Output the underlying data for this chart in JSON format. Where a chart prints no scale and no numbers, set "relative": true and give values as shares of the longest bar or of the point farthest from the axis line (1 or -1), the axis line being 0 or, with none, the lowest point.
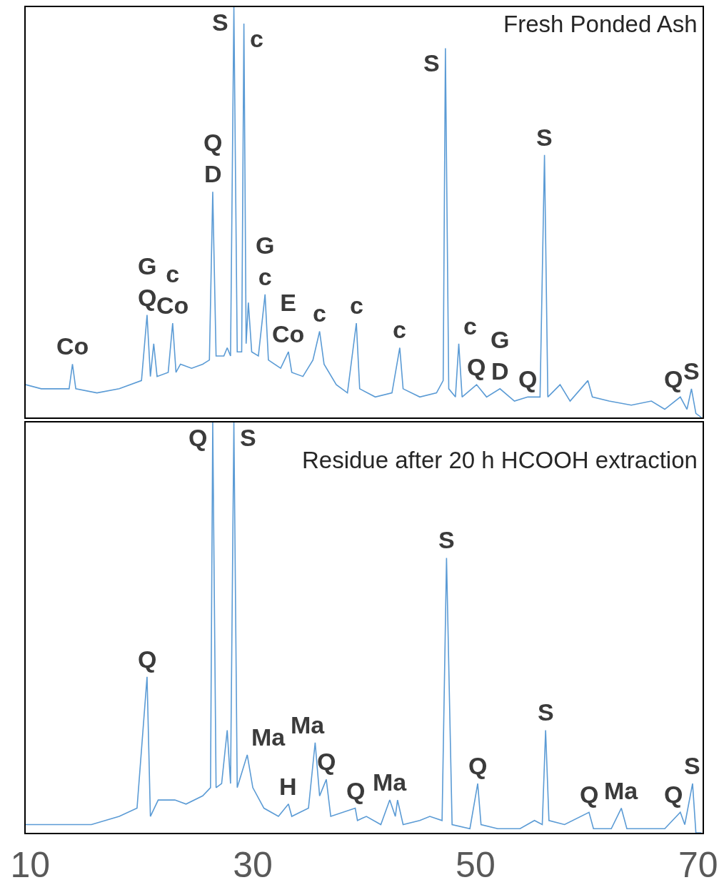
{
  "chart_data": [
    {
      "type": "line",
      "title": "Fresh Ponded Ash",
      "relative": true,
      "xlim": [
        9.6,
        70.4
      ],
      "xticks": [
        10,
        30,
        50,
        70
      ],
      "tick_labels": false,
      "x": [
        9.6,
        11,
        12.5,
        13.5,
        13.8,
        14.1,
        16,
        18,
        20,
        20.5,
        20.8,
        21.1,
        21.4,
        22.4,
        22.8,
        23.1,
        23.5,
        24.5,
        25.5,
        26.1,
        26.4,
        26.7,
        27.4,
        27.7,
        28.0,
        28.3,
        28.6,
        29.0,
        29.2,
        29.4,
        29.6,
        29.9,
        30.5,
        31.1,
        31.4,
        32.5,
        33.2,
        33.5,
        34.5,
        35.4,
        36.0,
        36.4,
        37.5,
        38.5,
        39.3,
        39.6,
        41,
        42.5,
        43.2,
        43.5,
        45,
        46.5,
        47.1,
        47.3,
        47.6,
        48.2,
        48.5,
        48.8,
        50.1,
        51,
        52.2,
        53.5,
        54.7,
        55.8,
        56.2,
        56.5,
        57.6,
        58.5,
        60.1,
        60.5,
        62,
        64,
        65.8,
        67,
        68.4,
        69,
        69.4,
        69.8,
        70.3
      ],
      "series": [
        {
          "color": "#5b9bd5",
          "values": [
            0.08,
            0.07,
            0.07,
            0.07,
            0.13,
            0.07,
            0.06,
            0.07,
            0.09,
            0.25,
            0.1,
            0.18,
            0.1,
            0.11,
            0.23,
            0.11,
            0.13,
            0.12,
            0.13,
            0.14,
            0.55,
            0.15,
            0.15,
            0.17,
            0.15,
            1.0,
            0.16,
            0.16,
            0.96,
            0.18,
            0.28,
            0.16,
            0.15,
            0.3,
            0.14,
            0.12,
            0.16,
            0.11,
            0.1,
            0.14,
            0.21,
            0.13,
            0.08,
            0.06,
            0.23,
            0.07,
            0.05,
            0.06,
            0.17,
            0.07,
            0.05,
            0.06,
            0.09,
            0.9,
            0.07,
            0.05,
            0.18,
            0.05,
            0.08,
            0.05,
            0.07,
            0.04,
            0.05,
            0.05,
            0.64,
            0.05,
            0.08,
            0.04,
            0.09,
            0.05,
            0.04,
            0.03,
            0.04,
            0.02,
            0.05,
            0.02,
            0.07,
            0.01,
            0.0
          ]
        }
      ],
      "annotations": [
        {
          "text": "Co",
          "x": 13.8,
          "y": 0.13
        },
        {
          "text": "G\nQ",
          "x": 20.5,
          "y": 0.25
        },
        {
          "text": "c\nCo",
          "x": 22.8,
          "y": 0.23
        },
        {
          "text": "Q\nD",
          "x": 26.4,
          "y": 0.55
        },
        {
          "text": "S",
          "x": 28.3,
          "y": 1.0
        },
        {
          "text": "c",
          "x": 29.2,
          "y": 0.96
        },
        {
          "text": "G\nc",
          "x": 31.1,
          "y": 0.3
        },
        {
          "text": "E\nCo",
          "x": 33.2,
          "y": 0.16
        },
        {
          "text": "c",
          "x": 36.0,
          "y": 0.21
        },
        {
          "text": "c",
          "x": 39.3,
          "y": 0.23
        },
        {
          "text": "c",
          "x": 43.2,
          "y": 0.17
        },
        {
          "text": "S",
          "x": 47.3,
          "y": 0.9
        },
        {
          "text": "c",
          "x": 48.5,
          "y": 0.18
        },
        {
          "text": "Q",
          "x": 50.1,
          "y": 0.08
        },
        {
          "text": "G\nD",
          "x": 52.2,
          "y": 0.07
        },
        {
          "text": "Q",
          "x": 54.7,
          "y": 0.05
        },
        {
          "text": "S",
          "x": 56.2,
          "y": 0.64
        },
        {
          "text": "Q",
          "x": 68.4,
          "y": 0.05
        },
        {
          "text": "S",
          "x": 69.4,
          "y": 0.07
        }
      ]
    },
    {
      "type": "line",
      "title": "Residue after 20 h HCOOH extraction",
      "relative": true,
      "xlim": [
        9.6,
        70.4
      ],
      "xticks": [
        10,
        30,
        50,
        70
      ],
      "tick_labels": "x",
      "x": [
        9.6,
        15.5,
        18,
        19.6,
        20.5,
        20.8,
        21.5,
        23.0,
        24.0,
        25.5,
        26.2,
        26.4,
        26.7,
        27.2,
        27.7,
        28.0,
        28.3,
        28.6,
        29.5,
        30.0,
        31,
        32.3,
        33.2,
        33.5,
        35.0,
        35.6,
        36.0,
        36.6,
        37,
        39.2,
        39.4,
        40.2,
        41.5,
        42.3,
        42.8,
        43.0,
        43.5,
        45,
        45.9,
        47.0,
        47.4,
        47.9,
        49.5,
        50.2,
        50.5,
        52,
        54,
        55.3,
        56,
        56.3,
        56.6,
        58,
        60.2,
        60.6,
        62.2,
        63.1,
        63.6,
        65,
        67,
        68.4,
        68.8,
        69.5,
        69.8,
        70.3
      ],
      "series": [
        {
          "color": "#5b9bd5",
          "values": [
            0.02,
            0.02,
            0.04,
            0.06,
            0.38,
            0.04,
            0.08,
            0.08,
            0.07,
            0.09,
            0.11,
            1.0,
            0.11,
            0.12,
            0.25,
            0.12,
            1.0,
            0.11,
            0.19,
            0.11,
            0.06,
            0.04,
            0.07,
            0.04,
            0.06,
            0.22,
            0.09,
            0.13,
            0.04,
            0.06,
            0.03,
            0.04,
            0.02,
            0.08,
            0.04,
            0.08,
            0.02,
            0.03,
            0.04,
            0.03,
            0.67,
            0.02,
            0.01,
            0.12,
            0.02,
            0.01,
            0.01,
            0.03,
            0.02,
            0.25,
            0.03,
            0.02,
            0.05,
            0.01,
            0.01,
            0.06,
            0.01,
            0.01,
            0.01,
            0.05,
            0.02,
            0.12,
            0.0,
            0.0
          ]
        }
      ],
      "annotations": [
        {
          "text": "Q",
          "x": 20.5,
          "y": 0.38
        },
        {
          "text": "Q",
          "x": 26.4,
          "y": 1.0
        },
        {
          "text": "S",
          "x": 28.3,
          "y": 1.0
        },
        {
          "text": "Ma",
          "x": 29.5,
          "y": 0.19
        },
        {
          "text": "H",
          "x": 33.2,
          "y": 0.07
        },
        {
          "text": "Ma",
          "x": 35.6,
          "y": 0.22
        },
        {
          "text": "Q",
          "x": 36.6,
          "y": 0.13
        },
        {
          "text": "Q",
          "x": 39.2,
          "y": 0.06
        },
        {
          "text": "Ma",
          "x": 42.3,
          "y": 0.08
        },
        {
          "text": "S",
          "x": 47.4,
          "y": 0.67
        },
        {
          "text": "Q",
          "x": 50.2,
          "y": 0.12
        },
        {
          "text": "S",
          "x": 56.3,
          "y": 0.25
        },
        {
          "text": "Q",
          "x": 60.2,
          "y": 0.05
        },
        {
          "text": "Ma",
          "x": 63.1,
          "y": 0.06
        },
        {
          "text": "Q",
          "x": 68.4,
          "y": 0.05
        },
        {
          "text": "S",
          "x": 69.5,
          "y": 0.12
        }
      ]
    }
  ]
}
